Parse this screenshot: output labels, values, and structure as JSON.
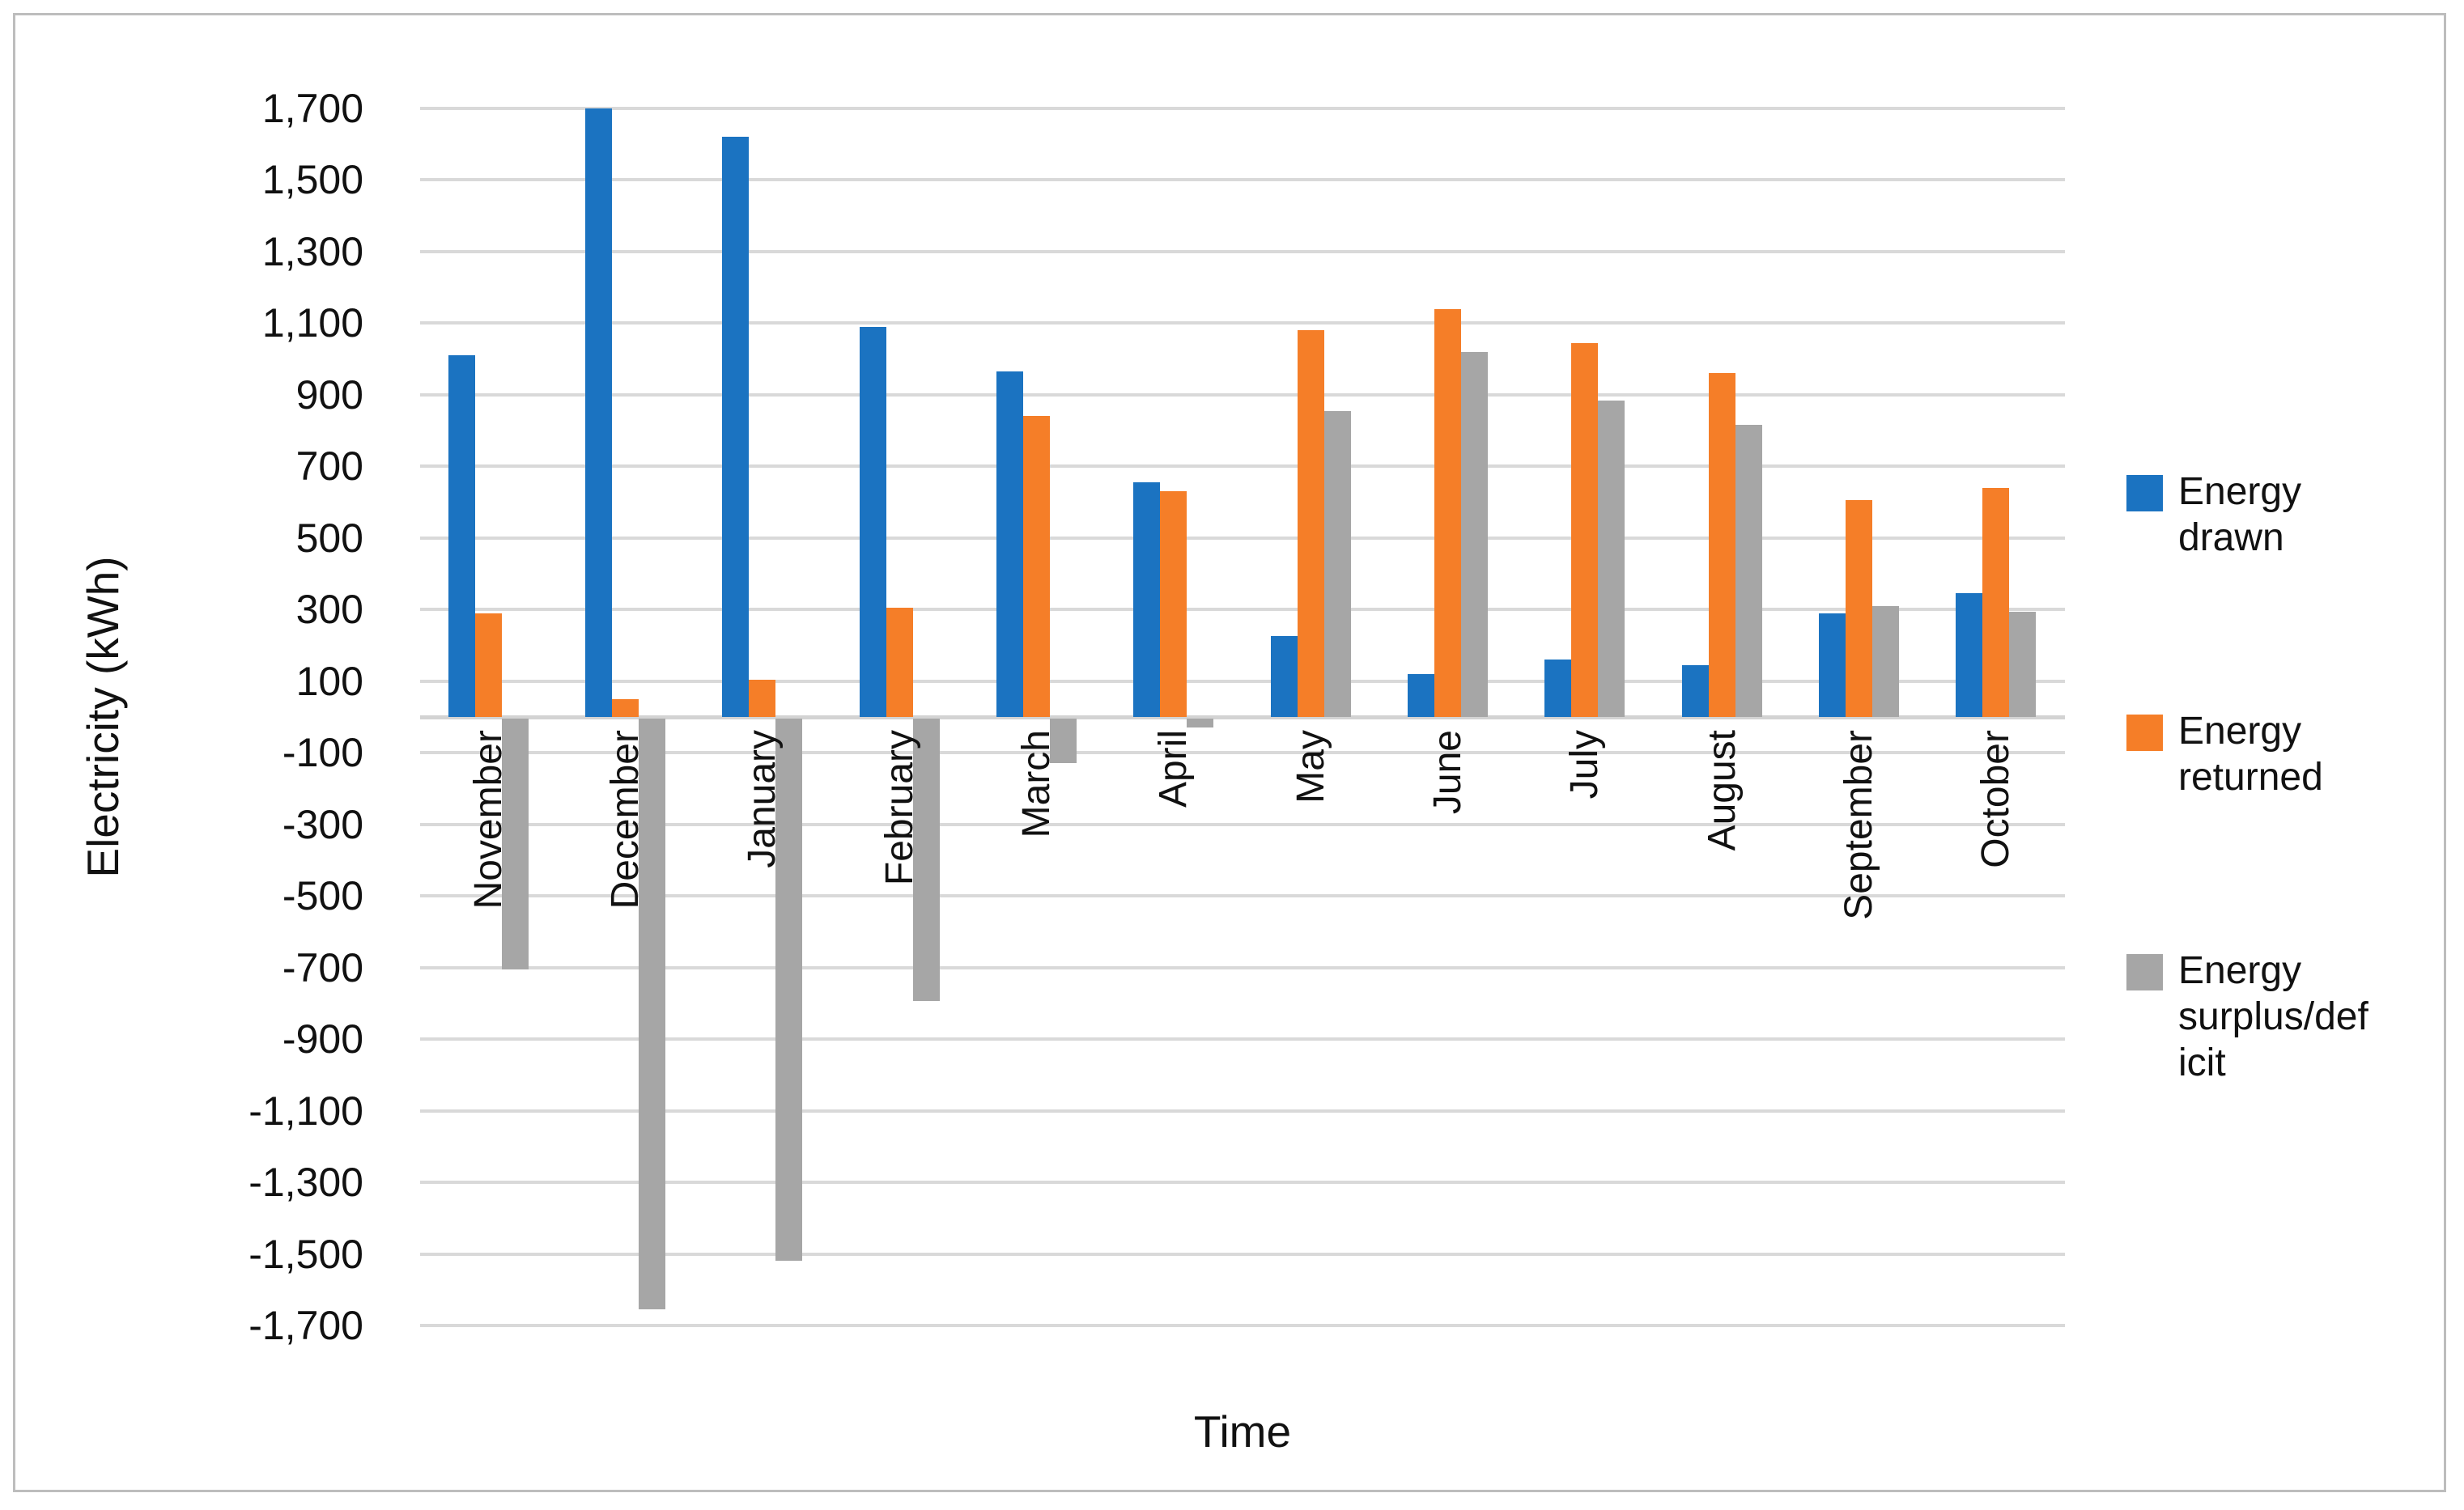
{
  "chart_data": {
    "type": "bar",
    "title": "",
    "xlabel": "Time",
    "ylabel": "Electricity (kWh)",
    "ylim": [
      -1700,
      1700
    ],
    "y_tick_step": 200,
    "grid": true,
    "legend_position": "right",
    "categories": [
      "November",
      "December",
      "January",
      "February",
      "March",
      "April",
      "May",
      "June",
      "July",
      "August",
      "September",
      "October"
    ],
    "y_ticks": [
      {
        "value": 1700,
        "label": "1,700"
      },
      {
        "value": 1500,
        "label": "1,500"
      },
      {
        "value": 1300,
        "label": "1,300"
      },
      {
        "value": 1100,
        "label": "1,100"
      },
      {
        "value": 900,
        "label": "900"
      },
      {
        "value": 700,
        "label": "700"
      },
      {
        "value": 500,
        "label": "500"
      },
      {
        "value": 300,
        "label": "300"
      },
      {
        "value": 100,
        "label": "100"
      },
      {
        "value": -100,
        "label": "-100"
      },
      {
        "value": -300,
        "label": "-300"
      },
      {
        "value": -500,
        "label": "-500"
      },
      {
        "value": -700,
        "label": "-700"
      },
      {
        "value": -900,
        "label": "-900"
      },
      {
        "value": -1100,
        "label": "-1,100"
      },
      {
        "value": -1300,
        "label": "-1,300"
      },
      {
        "value": -1500,
        "label": "-1,500"
      },
      {
        "value": -1700,
        "label": "-1,700"
      }
    ],
    "series": [
      {
        "name": "Energy drawn",
        "color": "#1B73C1",
        "values": [
          1010,
          1700,
          1620,
          1090,
          965,
          655,
          225,
          120,
          160,
          145,
          290,
          345
        ]
      },
      {
        "name": "Energy returned",
        "color": "#F57E28",
        "values": [
          290,
          50,
          105,
          305,
          840,
          630,
          1080,
          1140,
          1045,
          960,
          605,
          640
        ]
      },
      {
        "name": "Energy surplus/deficit",
        "color": "#A6A6A6",
        "values": [
          -700,
          -1650,
          -1515,
          -790,
          -125,
          -25,
          855,
          1020,
          885,
          815,
          310,
          295
        ]
      }
    ]
  },
  "legend": {
    "entries": [
      {
        "lines": [
          "Energy",
          "drawn"
        ],
        "color": "#1B73C1"
      },
      {
        "lines": [
          "Energy",
          "returned"
        ],
        "color": "#F57E28"
      },
      {
        "lines": [
          "Energy",
          "surplus/def",
          "icit"
        ],
        "color": "#A6A6A6"
      }
    ]
  },
  "frame": {
    "background": "#FFFFFF",
    "border_color": "#BDBDBD",
    "gridline_color": "#D9D9D9",
    "axis_line_color": "#D3D3D3",
    "text_color": "#111111"
  }
}
